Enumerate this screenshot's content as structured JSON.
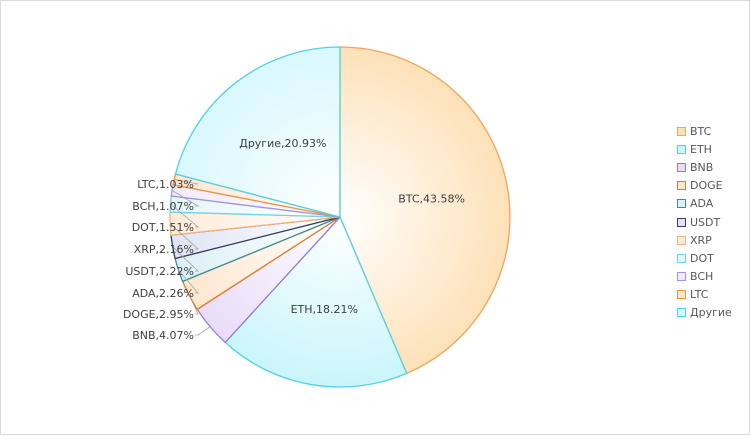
{
  "chart_data": {
    "type": "pie",
    "categories": [
      "BTC",
      "ETH",
      "BNB",
      "DOGE",
      "ADA",
      "USDT",
      "XRP",
      "DOT",
      "BCH",
      "LTC",
      "Другие"
    ],
    "values": [
      43.58,
      18.21,
      4.07,
      2.95,
      2.26,
      2.22,
      2.16,
      1.51,
      1.07,
      1.03,
      20.93
    ],
    "data_labels": [
      "BTC,43.58%",
      "ETH,18.21%",
      "BNB,4.07%",
      "DOGE,2.95%",
      "ADA,2.26%",
      "USDT,2.22%",
      "XRP,2.16%",
      "DOT,1.51%",
      "BCH,1.07%",
      "LTC,1.03%",
      "Другие,20.93%"
    ],
    "colors": {
      "fills": [
        "#fde1b8",
        "#c9f5fb",
        "#e9dcf7",
        "#fde7cf",
        "#dcf0f5",
        "#dfe4f4",
        "#fdebd9",
        "#e5f7fb",
        "#f2eafb",
        "#fde7cf",
        "#d9f8fe"
      ],
      "strokes": [
        "#f4a259",
        "#4fd1e6",
        "#9a7ad8",
        "#e07b22",
        "#3c8c99",
        "#3b3b63",
        "#f4b27a",
        "#6ed3e6",
        "#a794d8",
        "#f0923a",
        "#4fd1e6"
      ]
    },
    "legend": "right",
    "grid": false
  }
}
